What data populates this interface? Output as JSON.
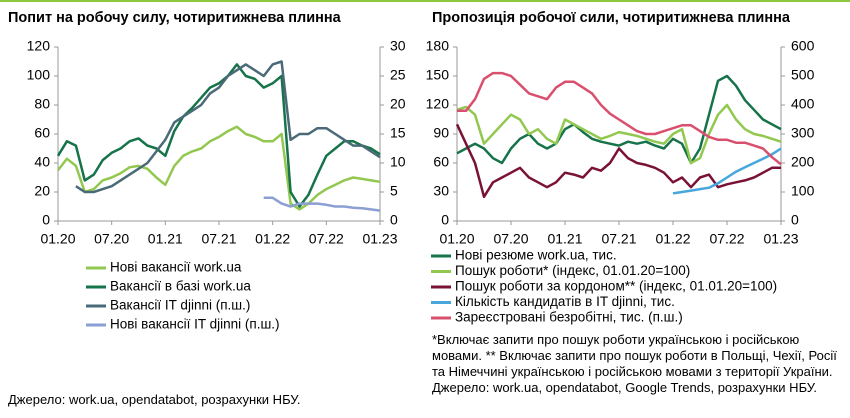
{
  "chart_data": [
    {
      "type": "line",
      "title": "Попит на робочу силу, чотиритижнева плинна",
      "categories": [
        "01.20",
        null,
        null,
        null,
        null,
        null,
        "07.20",
        null,
        null,
        null,
        null,
        null,
        "01.21",
        null,
        null,
        null,
        null,
        null,
        "07.21",
        null,
        null,
        null,
        null,
        null,
        "01.22",
        null,
        null,
        null,
        null,
        null,
        "07.22",
        null,
        null,
        null,
        null,
        null,
        "01.23"
      ],
      "ylim": [
        0,
        120
      ],
      "yticks": [
        0,
        20,
        40,
        60,
        80,
        100,
        120
      ],
      "y2lim": [
        0,
        30
      ],
      "y2ticks": [
        0,
        5,
        10,
        15,
        20,
        25,
        30
      ],
      "grid": false,
      "series": [
        {
          "name": "Нові вакансії work.ua",
          "color": "#92c84f",
          "values": [
            35,
            43,
            38,
            20,
            22,
            28,
            30,
            33,
            37,
            38,
            36,
            30,
            25,
            38,
            45,
            48,
            50,
            55,
            58,
            62,
            65,
            60,
            58,
            55,
            55,
            60,
            12,
            8,
            12,
            18,
            22,
            25,
            28,
            30,
            29,
            28,
            27
          ]
        },
        {
          "name": "Вакансії в базі work.ua",
          "color": "#16734a",
          "values": [
            45,
            55,
            52,
            28,
            32,
            42,
            47,
            50,
            55,
            57,
            52,
            50,
            45,
            62,
            72,
            78,
            85,
            92,
            95,
            100,
            108,
            100,
            98,
            92,
            95,
            100,
            20,
            10,
            18,
            32,
            45,
            50,
            55,
            55,
            52,
            50,
            46
          ]
        },
        {
          "name": "Вакансії IT djinni (п.ш.)",
          "color": "#4a6a78",
          "axis": "y2",
          "values": [
            null,
            null,
            6,
            5,
            5,
            5.5,
            6,
            7,
            8,
            9,
            10,
            12,
            14,
            17,
            18,
            19,
            20,
            22,
            23,
            25,
            26,
            27,
            26,
            25,
            27,
            27.5,
            14,
            15,
            15,
            16,
            16,
            15,
            14,
            13,
            13,
            12,
            11
          ]
        },
        {
          "name": "Нові вакансії IT djinni (п.ш.)",
          "color": "#8c9fd3",
          "axis": "y2",
          "values": [
            null,
            null,
            null,
            null,
            null,
            null,
            null,
            null,
            null,
            null,
            null,
            null,
            null,
            null,
            null,
            null,
            null,
            null,
            null,
            null,
            null,
            null,
            null,
            4,
            4,
            3,
            2.5,
            3,
            3,
            3,
            2.8,
            2.5,
            2.5,
            2.3,
            2.2,
            2,
            1.8
          ]
        }
      ]
    },
    {
      "type": "line",
      "title": "Пропозиція робочої сили, чотиритижнева плинна",
      "categories": [
        "01.20",
        null,
        null,
        null,
        null,
        null,
        "07.20",
        null,
        null,
        null,
        null,
        null,
        "01.21",
        null,
        null,
        null,
        null,
        null,
        "07.21",
        null,
        null,
        null,
        null,
        null,
        "01.22",
        null,
        null,
        null,
        null,
        null,
        "07.22",
        null,
        null,
        null,
        null,
        null,
        "01.23"
      ],
      "ylim": [
        0,
        180
      ],
      "yticks": [
        0,
        30,
        60,
        90,
        120,
        150,
        180
      ],
      "y2lim": [
        0,
        600
      ],
      "y2ticks": [
        0,
        100,
        200,
        300,
        400,
        500,
        600
      ],
      "grid": false,
      "series": [
        {
          "name": "Нові резюме work.ua, тис.",
          "color": "#16734a",
          "values": [
            70,
            75,
            80,
            75,
            65,
            60,
            75,
            85,
            90,
            80,
            75,
            80,
            95,
            100,
            92,
            85,
            82,
            80,
            78,
            82,
            80,
            82,
            78,
            75,
            85,
            80,
            60,
            75,
            110,
            145,
            150,
            140,
            125,
            115,
            105,
            100,
            95
          ]
        },
        {
          "name": "Пошук роботи* (індекс, 01.01.20=100)",
          "color": "#92c84f",
          "values": [
            115,
            118,
            110,
            80,
            90,
            100,
            110,
            105,
            90,
            95,
            85,
            80,
            105,
            100,
            95,
            90,
            85,
            88,
            92,
            90,
            88,
            85,
            82,
            80,
            90,
            95,
            60,
            65,
            90,
            110,
            120,
            105,
            95,
            90,
            88,
            85,
            82
          ]
        },
        {
          "name": "Пошук роботи за кордоном** (індекс, 01.01.20=100)",
          "color": "#7a1237",
          "values": [
            100,
            80,
            60,
            25,
            40,
            45,
            50,
            55,
            45,
            40,
            35,
            40,
            50,
            48,
            45,
            55,
            52,
            60,
            75,
            65,
            60,
            58,
            55,
            50,
            40,
            45,
            35,
            45,
            48,
            35,
            38,
            40,
            42,
            45,
            50,
            55,
            55
          ]
        },
        {
          "name": "Кількість кандидатів в IT djinni, тис.",
          "color": "#47a7dc",
          "axis": "y2",
          "values": [
            null,
            null,
            null,
            null,
            null,
            null,
            null,
            null,
            null,
            null,
            null,
            null,
            null,
            null,
            null,
            null,
            null,
            null,
            null,
            null,
            null,
            null,
            null,
            null,
            95,
            100,
            105,
            110,
            115,
            130,
            150,
            170,
            185,
            200,
            215,
            230,
            250
          ]
        },
        {
          "name": "Зареєстровані безробітні, тис. (п.ш.)",
          "color": "#d9506e",
          "axis": "y2",
          "values": [
            380,
            380,
            420,
            490,
            510,
            510,
            500,
            470,
            440,
            430,
            420,
            460,
            480,
            480,
            460,
            440,
            400,
            370,
            350,
            330,
            310,
            300,
            300,
            310,
            320,
            330,
            330,
            310,
            290,
            280,
            280,
            270,
            270,
            260,
            250,
            220,
            195
          ]
        }
      ]
    }
  ],
  "note": "*Включає запити про пошук роботи українською і російською мовами. ** Включає запити про пошук роботи в Польщі, Чехії, Росії та Німеччині українською і російською мовами з території України. Джерело: work.ua, opendatabot, Google Trends, розрахунки НБУ.",
  "source": "Джерело: work.ua, opendatabot, розрахунки НБУ."
}
